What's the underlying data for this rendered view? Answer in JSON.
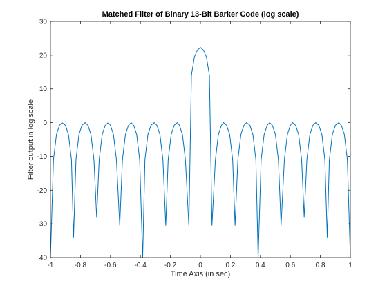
{
  "chart_data": {
    "type": "line",
    "title": "Matched Filter of Binary 13-Bit Barker Code (log scale)",
    "xlabel": "Time Axis (in sec)",
    "ylabel": "Filter output in log scale",
    "xlim": [
      -1,
      1
    ],
    "ylim": [
      -40,
      30
    ],
    "xticks": [
      -1,
      -0.8,
      -0.6,
      -0.4,
      -0.2,
      0,
      0.2,
      0.4,
      0.6,
      0.8,
      1
    ],
    "xtick_labels": [
      "-1",
      "-0.8",
      "-0.6",
      "-0.4",
      "-0.2",
      "0",
      "0.2",
      "0.4",
      "0.6",
      "0.8",
      "1"
    ],
    "yticks": [
      -40,
      -30,
      -20,
      -10,
      0,
      10,
      20,
      30
    ],
    "ytick_labels": [
      "-40",
      "-30",
      "-20",
      "-10",
      "0",
      "10",
      "20",
      "30"
    ],
    "grid": false,
    "line_color": "#0072BD",
    "series": [
      {
        "x": [
          -1.0,
          -0.98,
          -0.96,
          -0.94,
          -0.923,
          -0.9,
          -0.88,
          -0.86,
          -0.846,
          -0.83,
          -0.81,
          -0.79,
          -0.769,
          -0.75,
          -0.73,
          -0.71,
          -0.692,
          -0.675,
          -0.655,
          -0.635,
          -0.615,
          -0.6,
          -0.58,
          -0.56,
          -0.538,
          -0.52,
          -0.5,
          -0.48,
          -0.462,
          -0.445,
          -0.425,
          -0.405,
          -0.385,
          -0.37,
          -0.35,
          -0.33,
          -0.308,
          -0.29,
          -0.27,
          -0.25,
          -0.231,
          -0.215,
          -0.195,
          -0.175,
          -0.154,
          -0.14,
          -0.12,
          -0.1,
          -0.077,
          -0.06,
          -0.04,
          -0.02,
          0.0,
          0.02,
          0.04,
          0.06,
          0.077,
          0.1,
          0.12,
          0.14,
          0.154,
          0.175,
          0.195,
          0.215,
          0.231,
          0.25,
          0.27,
          0.29,
          0.308,
          0.33,
          0.35,
          0.37,
          0.385,
          0.405,
          0.425,
          0.445,
          0.462,
          0.48,
          0.5,
          0.52,
          0.538,
          0.56,
          0.58,
          0.6,
          0.615,
          0.635,
          0.655,
          0.675,
          0.692,
          0.71,
          0.73,
          0.75,
          0.769,
          0.79,
          0.81,
          0.83,
          0.846,
          0.86,
          0.88,
          0.9,
          0.923,
          0.94,
          0.96,
          0.98,
          1.0
        ],
        "y": [
          -40,
          -11,
          -3.5,
          -0.8,
          0,
          -0.8,
          -3.5,
          -11,
          -34,
          -11,
          -3.5,
          -0.8,
          0,
          -0.8,
          -3.5,
          -11,
          -28,
          -11,
          -3.5,
          -0.8,
          0,
          -0.8,
          -3.5,
          -11,
          -30.5,
          -11,
          -3.5,
          -0.8,
          0,
          -0.8,
          -3.5,
          -11,
          -40,
          -11,
          -3.5,
          -0.8,
          0,
          -0.8,
          -3.5,
          -11,
          -30.5,
          -11,
          -3.5,
          -0.8,
          0,
          -0.8,
          -3.5,
          -11,
          -30.5,
          14,
          19.5,
          21.5,
          22.3,
          21.5,
          19.5,
          14,
          -30.5,
          -11,
          -3.5,
          -0.8,
          0,
          -0.8,
          -3.5,
          -11,
          -30.5,
          -11,
          -3.5,
          -0.8,
          0,
          -0.8,
          -3.5,
          -11,
          -40,
          -11,
          -3.5,
          -0.8,
          0,
          -0.8,
          -3.5,
          -11,
          -30.5,
          -11,
          -3.5,
          -0.8,
          0,
          -0.8,
          -3.5,
          -11,
          -28,
          -11,
          -3.5,
          -0.8,
          0,
          -0.8,
          -3.5,
          -11,
          -34,
          -11,
          -3.5,
          -0.8,
          0,
          -0.8,
          -3.5,
          -11,
          -40
        ]
      }
    ]
  }
}
